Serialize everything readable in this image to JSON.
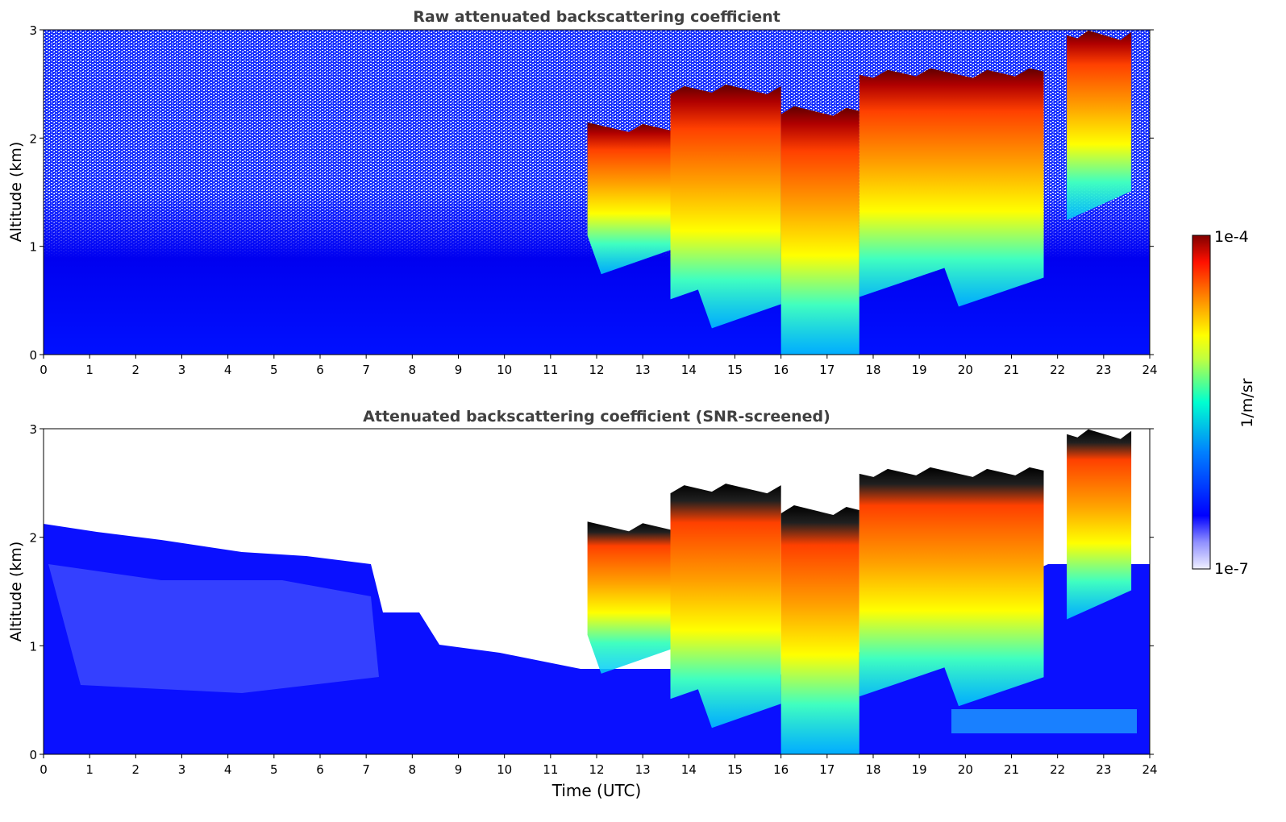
{
  "chart_data": [
    {
      "type": "heatmap",
      "title": "Raw attenuated backscattering coefficient",
      "xlabel": "",
      "ylabel": "Altitude (km)",
      "xlim": [
        0,
        24
      ],
      "ylim": [
        0,
        3
      ],
      "xticks": [
        "0",
        "1",
        "2",
        "3",
        "4",
        "5",
        "6",
        "7",
        "8",
        "9",
        "10",
        "11",
        "12",
        "13",
        "14",
        "15",
        "16",
        "17",
        "18",
        "19",
        "20",
        "21",
        "22",
        "23",
        "24"
      ],
      "yticks": [
        "0",
        "1",
        "2",
        "3"
      ],
      "screened": false,
      "noise_visible": true,
      "cloud_layers": [
        {
          "x_start": 11.8,
          "x_end": 13.6,
          "base_km": 1.1,
          "top_km": 2.1,
          "intensity": "high"
        },
        {
          "x_start": 13.6,
          "x_end": 16.0,
          "base_km": 0.6,
          "top_km": 2.45,
          "intensity": "high"
        },
        {
          "x_start": 16.0,
          "x_end": 17.7,
          "base_km": 0.0,
          "top_km": 2.25,
          "intensity": "high"
        },
        {
          "x_start": 17.7,
          "x_end": 21.7,
          "base_km": 0.8,
          "top_km": 2.6,
          "intensity": "high"
        },
        {
          "x_start": 22.2,
          "x_end": 23.6,
          "base_km": 1.6,
          "top_km": 2.95,
          "intensity": "high"
        }
      ]
    },
    {
      "type": "heatmap",
      "title": "Attenuated backscattering coefficient (SNR-screened)",
      "xlabel": "Time (UTC)",
      "ylabel": "Altitude (km)",
      "xlim": [
        0,
        24
      ],
      "ylim": [
        0,
        3
      ],
      "xticks": [
        "0",
        "1",
        "2",
        "3",
        "4",
        "5",
        "6",
        "7",
        "8",
        "9",
        "10",
        "11",
        "12",
        "13",
        "14",
        "15",
        "16",
        "17",
        "18",
        "19",
        "20",
        "21",
        "22",
        "23",
        "24"
      ],
      "yticks": [
        "0",
        "1",
        "2",
        "3"
      ],
      "screened": true,
      "noise_visible": false,
      "cloud_layers": [
        {
          "x_start": 11.8,
          "x_end": 13.6,
          "base_km": 1.1,
          "top_km": 2.1,
          "intensity": "high"
        },
        {
          "x_start": 13.6,
          "x_end": 16.0,
          "base_km": 0.6,
          "top_km": 2.45,
          "intensity": "high"
        },
        {
          "x_start": 16.0,
          "x_end": 17.7,
          "base_km": 0.0,
          "top_km": 2.25,
          "intensity": "high"
        },
        {
          "x_start": 17.7,
          "x_end": 21.7,
          "base_km": 0.8,
          "top_km": 2.6,
          "intensity": "high"
        },
        {
          "x_start": 22.2,
          "x_end": 23.6,
          "base_km": 1.6,
          "top_km": 2.95,
          "intensity": "high"
        }
      ]
    }
  ],
  "colorbar": {
    "label": "1/m/sr",
    "max_label": "1e-4",
    "min_label": "1e-7",
    "colormap": "jet",
    "colors": [
      "#e8e8ff",
      "#0000ff",
      "#00b0ff",
      "#00ffc0",
      "#ffff00",
      "#ff8000",
      "#ff0000",
      "#800000"
    ]
  }
}
